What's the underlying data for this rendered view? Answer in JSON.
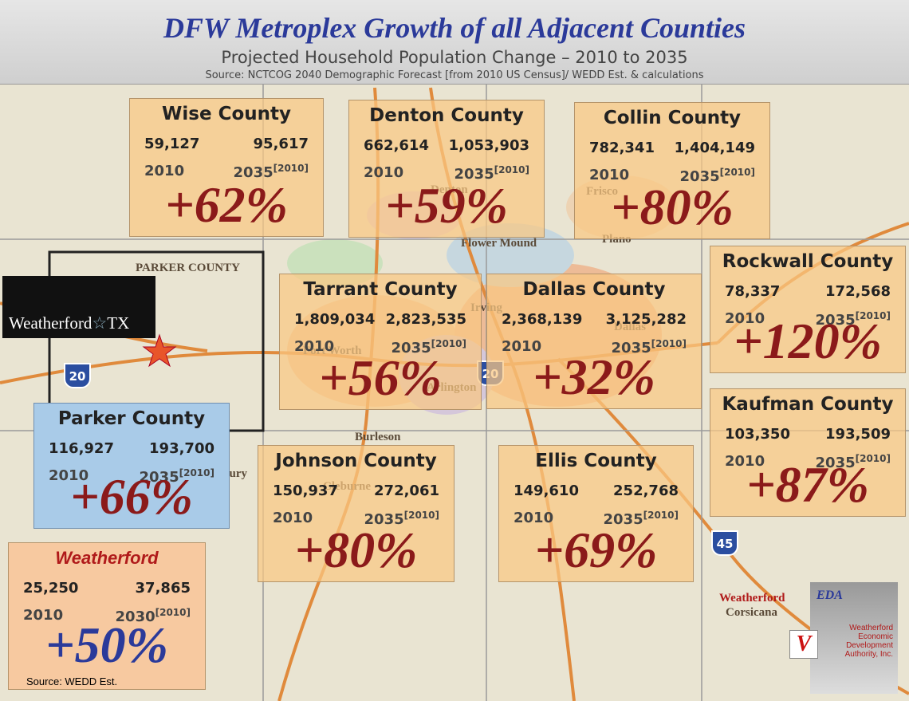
{
  "header": {
    "title": "DFW Metroplex Growth of all Adjacent Counties",
    "subtitle": "Projected  Household Population Change – 2010 to 2035",
    "source": "Source: NCTCOG 2040 Demographic Forecast [from 2010 US Census]/ WEDD Est. & calculations"
  },
  "counties": [
    {
      "name": "Wise County",
      "pop_2010": "59,127",
      "pop_2035": "95,617",
      "year_start": "2010",
      "year_end": "2035",
      "year_note": "[2010]",
      "change": "+62%"
    },
    {
      "name": "Denton County",
      "pop_2010": "662,614",
      "pop_2035": "1,053,903",
      "year_start": "2010",
      "year_end": "2035",
      "year_note": "[2010]",
      "change": "+59%"
    },
    {
      "name": "Collin County",
      "pop_2010": "782,341",
      "pop_2035": "1,404,149",
      "year_start": "2010",
      "year_end": "2035",
      "year_note": "[2010]",
      "change": "+80%"
    },
    {
      "name": "Rockwall County",
      "pop_2010": "78,337",
      "pop_2035": "172,568",
      "year_start": "2010",
      "year_end": "2035",
      "year_note": "[2010]",
      "change": "+120%"
    },
    {
      "name": "Tarrant County",
      "pop_2010": "1,809,034",
      "pop_2035": "2,823,535",
      "year_start": "2010",
      "year_end": "2035",
      "year_note": "[2010]",
      "change": "+56%"
    },
    {
      "name": "Dallas County",
      "pop_2010": "2,368,139",
      "pop_2035": "3,125,282",
      "year_start": "2010",
      "year_end": "2035",
      "year_note": "[2010]",
      "change": "+32%"
    },
    {
      "name": "Kaufman County",
      "pop_2010": "103,350",
      "pop_2035": "193,509",
      "year_start": "2010",
      "year_end": "2035",
      "year_note": "[2010]",
      "change": "+87%"
    },
    {
      "name": "Parker County",
      "pop_2010": "116,927",
      "pop_2035": "193,700",
      "year_start": "2010",
      "year_end": "2035",
      "year_note": "[2010]",
      "change": "+66%"
    },
    {
      "name": "Johnson County",
      "pop_2010": "150,937",
      "pop_2035": "272,061",
      "year_start": "2010",
      "year_end": "2035",
      "year_note": "[2010]",
      "change": "+80%"
    },
    {
      "name": "Ellis County",
      "pop_2010": "149,610",
      "pop_2035": "252,768",
      "year_start": "2010",
      "year_end": "2035",
      "year_note": "[2010]",
      "change": "+69%"
    },
    {
      "name": "Weatherford",
      "pop_2010": "25,250",
      "pop_2035": "37,865",
      "year_start": "2010",
      "year_end": "2030",
      "year_note": "[2010]",
      "change": "+50%",
      "source": "Source: WEDD Est."
    }
  ],
  "map_labels": [
    "PARKER COUNTY",
    "Denton",
    "Flower Mound",
    "Fort Worth",
    "Arlington",
    "Irving",
    "Dallas",
    "Burleson",
    "Cleburne",
    "Frisco",
    "Plano",
    "Granbury",
    "Corsicana",
    "20",
    "20",
    "45"
  ],
  "logo": {
    "city": "Weatherford",
    "state": "TX"
  },
  "eda": {
    "name": "EDA",
    "full_name": "Weatherford Economic Development Authority, Inc.",
    "city": "Weatherford"
  }
}
